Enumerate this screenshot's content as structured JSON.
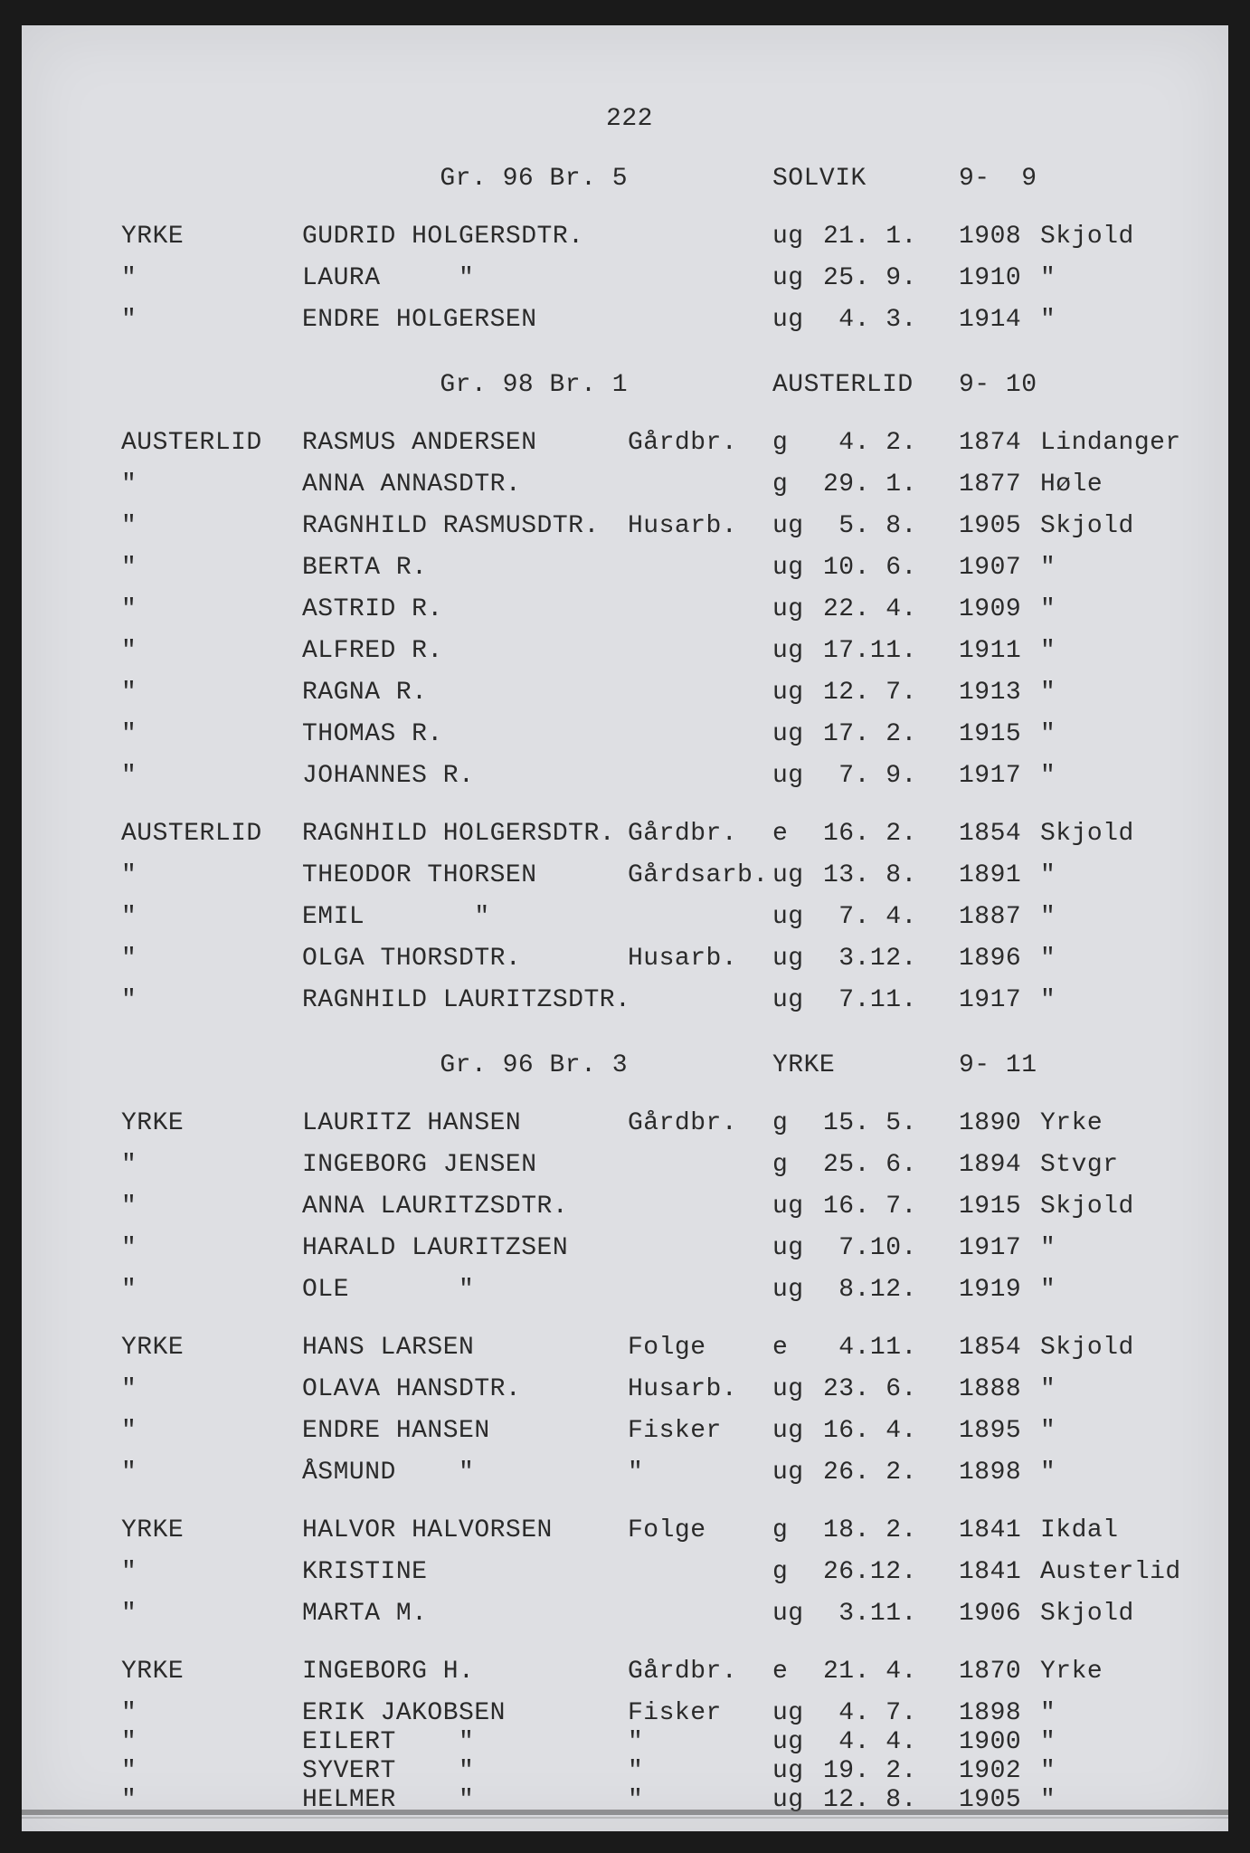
{
  "page_number": "222",
  "background_color": "#dedfe3",
  "frame_color": "#1a1a1a",
  "text_color": "#2a2a2a",
  "font_family": "Courier New",
  "font_size_pt": 21,
  "ditto": "\"",
  "sections": [
    {
      "header": {
        "gr": "Gr. 96 Br. 5",
        "name": "SOLVIK",
        "ref": "9-  9"
      },
      "groups": [
        [
          {
            "c1": "YRKE",
            "c2": "GUDRID HOLGERSDTR.",
            "c3": "",
            "c4": "ug",
            "c5": "21. 1.",
            "c6": "1908",
            "c7": "Skjold"
          },
          {
            "c1": "\"",
            "c2": "LAURA     \"",
            "c3": "",
            "c4": "ug",
            "c5": "25. 9.",
            "c6": "1910",
            "c7": "\""
          },
          {
            "c1": "\"",
            "c2": "ENDRE HOLGERSEN",
            "c3": "",
            "c4": "ug",
            "c5": " 4. 3.",
            "c6": "1914",
            "c7": "\""
          }
        ]
      ]
    },
    {
      "header": {
        "gr": "Gr. 98 Br. 1",
        "name": "AUSTERLID",
        "ref": "9- 10"
      },
      "groups": [
        [
          {
            "c1": "AUSTERLID",
            "c2": "RASMUS ANDERSEN",
            "c3": "Gårdbr.",
            "c4": "g",
            "c5": " 4. 2.",
            "c6": "1874",
            "c7": "Lindanger"
          },
          {
            "c1": "\"",
            "c2": "ANNA ANNASDTR.",
            "c3": "",
            "c4": "g",
            "c5": "29. 1.",
            "c6": "1877",
            "c7": "Høle"
          },
          {
            "c1": "\"",
            "c2": "RAGNHILD RASMUSDTR.",
            "c3": "Husarb.",
            "c4": "ug",
            "c5": " 5. 8.",
            "c6": "1905",
            "c7": "Skjold"
          },
          {
            "c1": "\"",
            "c2": "BERTA R.",
            "c3": "",
            "c4": "ug",
            "c5": "10. 6.",
            "c6": "1907",
            "c7": "\""
          },
          {
            "c1": "\"",
            "c2": "ASTRID R.",
            "c3": "",
            "c4": "ug",
            "c5": "22. 4.",
            "c6": "1909",
            "c7": "\""
          },
          {
            "c1": "\"",
            "c2": "ALFRED R.",
            "c3": "",
            "c4": "ug",
            "c5": "17.11.",
            "c6": "1911",
            "c7": "\""
          },
          {
            "c1": "\"",
            "c2": "RAGNA R.",
            "c3": "",
            "c4": "ug",
            "c5": "12. 7.",
            "c6": "1913",
            "c7": "\""
          },
          {
            "c1": "\"",
            "c2": "THOMAS R.",
            "c3": "",
            "c4": "ug",
            "c5": "17. 2.",
            "c6": "1915",
            "c7": "\""
          },
          {
            "c1": "\"",
            "c2": "JOHANNES R.",
            "c3": "",
            "c4": "ug",
            "c5": " 7. 9.",
            "c6": "1917",
            "c7": "\""
          }
        ],
        [
          {
            "c1": "AUSTERLID",
            "c2": "RAGNHILD HOLGERSDTR.",
            "c3": "Gårdbr.",
            "c4": "e",
            "c5": "16. 2.",
            "c6": "1854",
            "c7": "Skjold"
          },
          {
            "c1": "\"",
            "c2": "THEODOR THORSEN",
            "c3": "Gårdsarb.",
            "c4": "ug",
            "c5": "13. 8.",
            "c6": "1891",
            "c7": "\""
          },
          {
            "c1": "\"",
            "c2": "EMIL       \"",
            "c3": "",
            "c4": "ug",
            "c5": " 7. 4.",
            "c6": "1887",
            "c7": "\""
          },
          {
            "c1": "\"",
            "c2": "OLGA THORSDTR.",
            "c3": "Husarb.",
            "c4": "ug",
            "c5": " 3.12.",
            "c6": "1896",
            "c7": "\""
          },
          {
            "c1": "\"",
            "c2": "RAGNHILD LAURITZSDTR.",
            "c3": "",
            "c4": "ug",
            "c5": " 7.11.",
            "c6": "1917",
            "c7": "\""
          }
        ]
      ]
    },
    {
      "header": {
        "gr": "Gr. 96 Br. 3",
        "name": "YRKE",
        "ref": "9- 11"
      },
      "groups": [
        [
          {
            "c1": "YRKE",
            "c2": "LAURITZ HANSEN",
            "c3": "Gårdbr.",
            "c4": "g",
            "c5": "15. 5.",
            "c6": "1890",
            "c7": "Yrke"
          },
          {
            "c1": "\"",
            "c2": "INGEBORG JENSEN",
            "c3": "",
            "c4": "g",
            "c5": "25. 6.",
            "c6": "1894",
            "c7": "Stvgr"
          },
          {
            "c1": "\"",
            "c2": "ANNA LAURITZSDTR.",
            "c3": "",
            "c4": "ug",
            "c5": "16. 7.",
            "c6": "1915",
            "c7": "Skjold"
          },
          {
            "c1": "\"",
            "c2": "HARALD LAURITZSEN",
            "c3": "",
            "c4": "ug",
            "c5": " 7.10.",
            "c6": "1917",
            "c7": "\""
          },
          {
            "c1": "\"",
            "c2": "OLE       \"",
            "c3": "",
            "c4": "ug",
            "c5": " 8.12.",
            "c6": "1919",
            "c7": "\""
          }
        ],
        [
          {
            "c1": "YRKE",
            "c2": "HANS LARSEN",
            "c3": "Folge",
            "c4": "e",
            "c5": " 4.11.",
            "c6": "1854",
            "c7": "Skjold"
          },
          {
            "c1": "\"",
            "c2": "OLAVA HANSDTR.",
            "c3": "Husarb.",
            "c4": "ug",
            "c5": "23. 6.",
            "c6": "1888",
            "c7": "\""
          },
          {
            "c1": "\"",
            "c2": "ENDRE HANSEN",
            "c3": "Fisker",
            "c4": "ug",
            "c5": "16. 4.",
            "c6": "1895",
            "c7": "\""
          },
          {
            "c1": "\"",
            "c2": "ÅSMUND    \"",
            "c3": "\"",
            "c4": "ug",
            "c5": "26. 2.",
            "c6": "1898",
            "c7": "\""
          }
        ],
        [
          {
            "c1": "YRKE",
            "c2": "HALVOR HALVORSEN",
            "c3": "Folge",
            "c4": "g",
            "c5": "18. 2.",
            "c6": "1841",
            "c7": "Ikdal"
          },
          {
            "c1": "\"",
            "c2": "KRISTINE",
            "c3": "",
            "c4": "g",
            "c5": "26.12.",
            "c6": "1841",
            "c7": "Austerlid"
          },
          {
            "c1": "\"",
            "c2": "MARTA M.",
            "c3": "",
            "c4": "ug",
            "c5": " 3.11.",
            "c6": "1906",
            "c7": "Skjold"
          }
        ],
        [
          {
            "c1": "YRKE",
            "c2": "INGEBORG H.",
            "c3": "Gårdbr.",
            "c4": "e",
            "c5": "21. 4.",
            "c6": "1870",
            "c7": "Yrke"
          },
          {
            "c1": "\"",
            "c2": "ERIK JAKOBSEN",
            "c3": "Fisker",
            "c4": "ug",
            "c5": " 4. 7.",
            "c6": "1898",
            "c7": "\"",
            "tight": true
          },
          {
            "c1": "\"",
            "c2": "EILERT    \"",
            "c3": "\"",
            "c4": "ug",
            "c5": " 4. 4.",
            "c6": "1900",
            "c7": "\"",
            "tight": true
          },
          {
            "c1": "\"",
            "c2": "SYVERT    \"",
            "c3": "\"",
            "c4": "ug",
            "c5": "19. 2.",
            "c6": "1902",
            "c7": "\"",
            "tight": true
          },
          {
            "c1": "\"",
            "c2": "HELMER    \"",
            "c3": "\"",
            "c4": "ug",
            "c5": "12. 8.",
            "c6": "1905",
            "c7": "\"",
            "tight": true
          }
        ]
      ]
    }
  ]
}
